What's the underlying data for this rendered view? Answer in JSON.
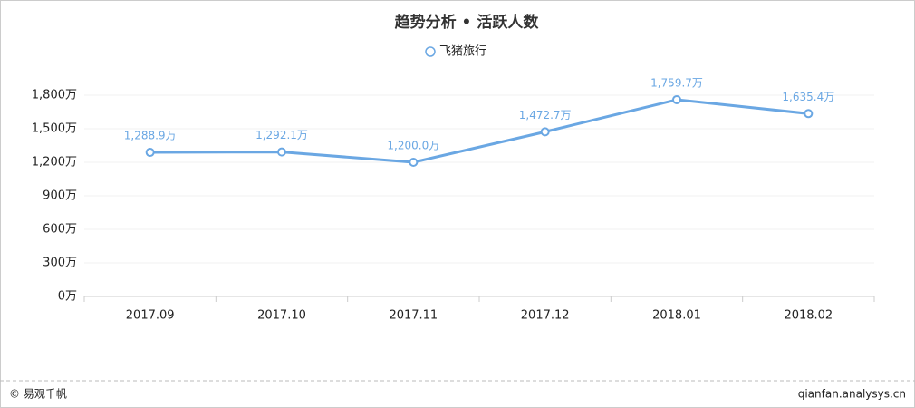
{
  "chart_data": {
    "type": "line",
    "title": "趋势分析 • 活跃人数",
    "categories": [
      "2017.09",
      "2017.10",
      "2017.11",
      "2017.12",
      "2018.01",
      "2018.02"
    ],
    "series": [
      {
        "name": "飞猪旅行",
        "color": "#6aa7e3",
        "values": [
          1288.9,
          1292.1,
          1200.0,
          1472.7,
          1759.7,
          1635.4
        ],
        "value_labels": [
          "1,288.9万",
          "1,292.1万",
          "1,200.0万",
          "1,472.7万",
          "1,759.7万",
          "1,635.4万"
        ]
      }
    ],
    "ylim": [
      0,
      1800
    ],
    "yticks": [
      {
        "value": 0,
        "label": "0万"
      },
      {
        "value": 300,
        "label": "300万"
      },
      {
        "value": 600,
        "label": "600万"
      },
      {
        "value": 900,
        "label": "900万"
      },
      {
        "value": 1200,
        "label": "1,200万"
      },
      {
        "value": 1500,
        "label": "1,500万"
      },
      {
        "value": 1800,
        "label": "1,800万"
      }
    ],
    "grid": true
  },
  "footer": {
    "source": "© 易观千帆",
    "site": "qianfan.analysys.cn"
  }
}
